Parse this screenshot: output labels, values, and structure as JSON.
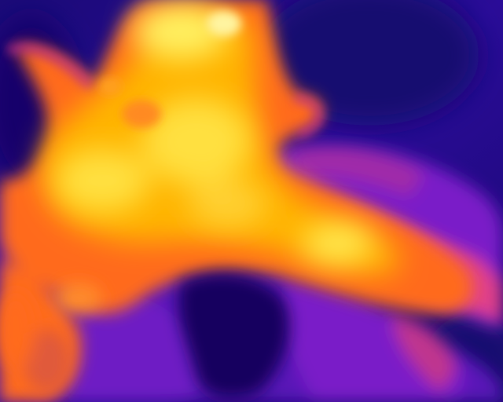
{
  "image": {
    "kind": "thermal-infrared-photo",
    "palette": "ironbow",
    "colors": {
      "cold": "#14066a",
      "cool": "#3a10b0",
      "mid_cool": "#7a1ec8",
      "warm": "#e0408a",
      "hot": "#ff7a1a",
      "hotter": "#ffb400",
      "hottest": "#fff060"
    },
    "subjects": [
      "cat-icon",
      "arm-icon",
      "blanket-icon"
    ]
  }
}
